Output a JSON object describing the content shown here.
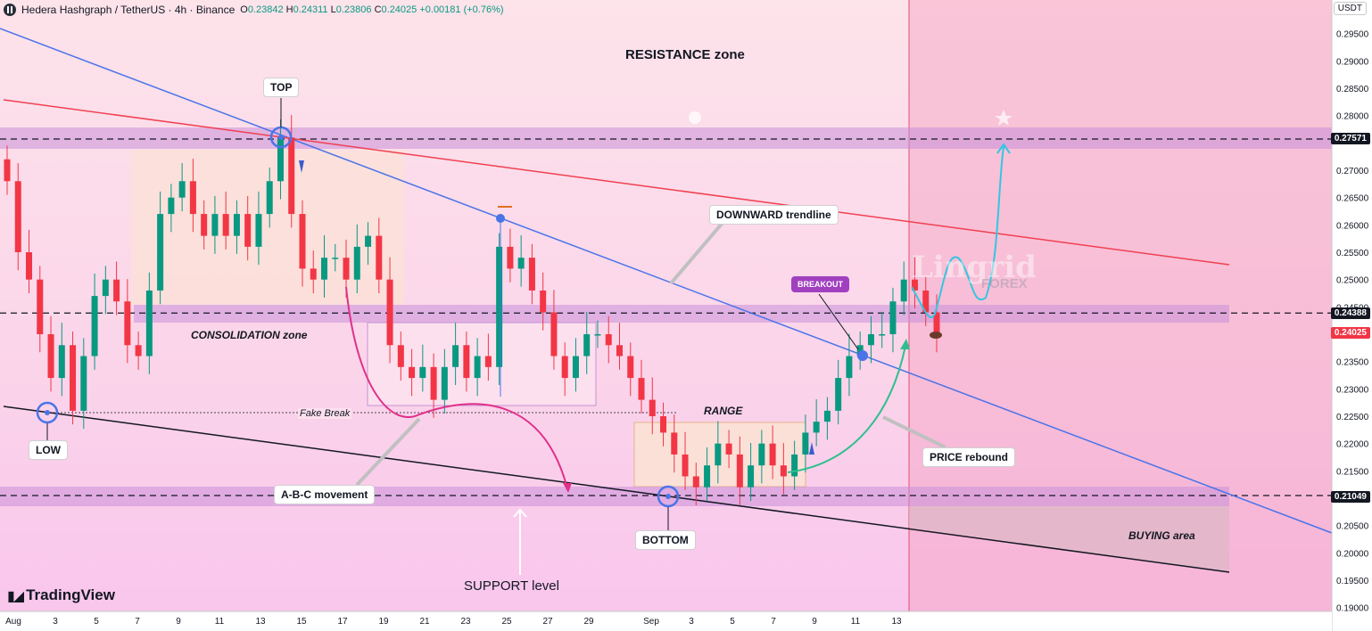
{
  "header": {
    "title": "Hedera Hashgraph / TetherUS · 4h · Binance",
    "ohlc": {
      "o_label": "O",
      "o": "0.23842",
      "h_label": "H",
      "h": "0.24311",
      "l_label": "L",
      "l": "0.23806",
      "c_label": "C",
      "c": "0.24025",
      "change": "+0.00181 (+0.76%)"
    }
  },
  "branding": {
    "tradingview": "TradingView",
    "watermark_1": "Lingrid",
    "watermark_2": "FOREX"
  },
  "colors": {
    "up": "#089981",
    "down": "#f23645",
    "trendline_down": "#4a74e8",
    "resistance_line": "#f04050",
    "zone": "#c890d8",
    "rebound_arrow": "#2fbf8f",
    "projection": "#33c6e0",
    "abc_arrow": "#e0308a"
  },
  "chart_data": {
    "type": "candlestick",
    "symbol": "Hedera Hashgraph / TetherUS",
    "timeframe": "4h",
    "exchange": "Binance",
    "y_axis": {
      "unit": "USDT",
      "ylim": [
        0.19,
        0.2995
      ],
      "ticks": [
        "0.29500",
        "0.29000",
        "0.28500",
        "0.28000",
        "0.27000",
        "0.26500",
        "0.26000",
        "0.25500",
        "0.25000",
        "0.24500",
        "0.23500",
        "0.23000",
        "0.22500",
        "0.22000",
        "0.21500",
        "0.20500",
        "0.20000",
        "0.19500",
        "0.19000"
      ]
    },
    "x_axis": {
      "ticks": [
        "Aug",
        "3",
        "5",
        "7",
        "9",
        "11",
        "13",
        "15",
        "17",
        "19",
        "21",
        "23",
        "25",
        "27",
        "29",
        "Sep",
        "3",
        "5",
        "7",
        "9",
        "11",
        "13"
      ]
    },
    "current_price": "0.24025",
    "price_levels": [
      {
        "value": 0.27571,
        "label": "0.27571"
      },
      {
        "value": 0.24388,
        "label": "0.24388"
      },
      {
        "value": 0.21049,
        "label": "0.21049"
      }
    ],
    "approx_closes": [
      0.268,
      0.255,
      0.25,
      0.24,
      0.232,
      0.238,
      0.226,
      0.236,
      0.247,
      0.25,
      0.246,
      0.238,
      0.236,
      0.248,
      0.262,
      0.265,
      0.268,
      0.262,
      0.258,
      0.262,
      0.258,
      0.262,
      0.256,
      0.262,
      0.268,
      0.276,
      0.262,
      0.252,
      0.25,
      0.254,
      0.254,
      0.25,
      0.256,
      0.258,
      0.25,
      0.238,
      0.234,
      0.232,
      0.234,
      0.228,
      0.234,
      0.238,
      0.232,
      0.236,
      0.234,
      0.256,
      0.252,
      0.254,
      0.248,
      0.244,
      0.236,
      0.232,
      0.236,
      0.24,
      0.24,
      0.238,
      0.236,
      0.232,
      0.228,
      0.225,
      0.222,
      0.218,
      0.214,
      0.212,
      0.216,
      0.22,
      0.218,
      0.212,
      0.216,
      0.22,
      0.216,
      0.214,
      0.218,
      0.222,
      0.224,
      0.226,
      0.232,
      0.236,
      0.238,
      0.24,
      0.24,
      0.246,
      0.25,
      0.248,
      0.244,
      0.24
    ],
    "annotations": {
      "resistance": "RESISTANCE zone",
      "top": "TOP",
      "low": "LOW",
      "bottom": "BOTTOM",
      "consolidation": "CONSOLIDATION zone",
      "fake_break": "Fake Break",
      "range": "RANGE",
      "abc": "A-B-C movement",
      "support": "SUPPORT level",
      "downward": "DOWNWARD trendline",
      "breakout": "BREAKOUT",
      "rebound": "PRICE rebound",
      "buying": "BUYING area"
    }
  }
}
